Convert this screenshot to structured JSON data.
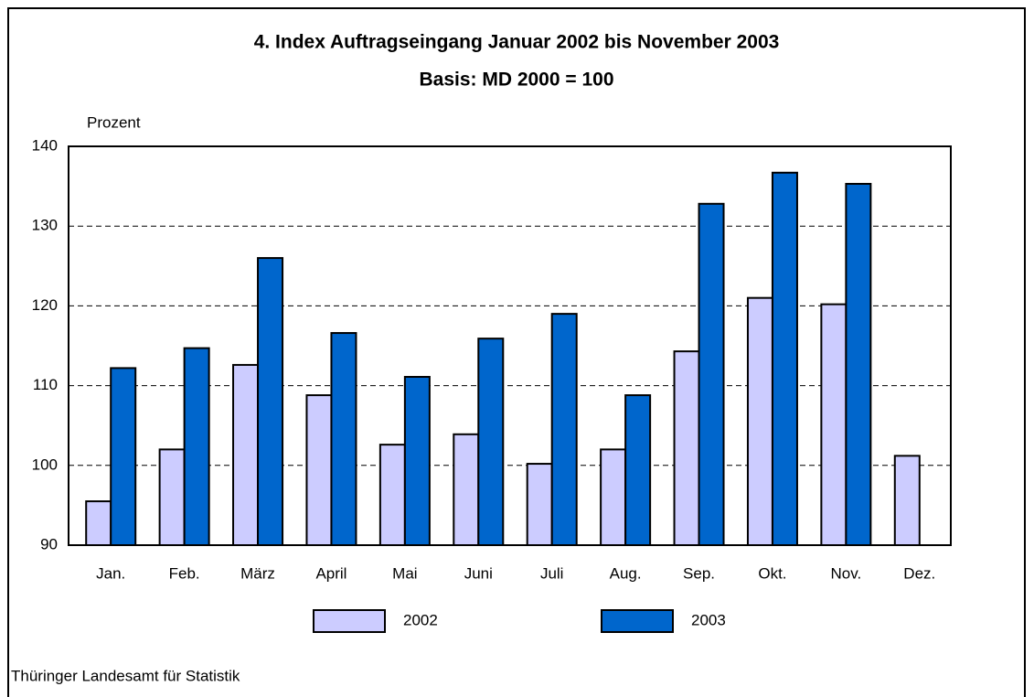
{
  "chart_data": {
    "type": "bar",
    "title": "4. Index Auftragseingang Januar 2002 bis November 2003",
    "subtitle": "Basis: MD 2000 = 100",
    "y_label": "Prozent",
    "source": "Thüringer Landesamt für Statistik",
    "categories": [
      "Jan.",
      "Feb.",
      "März",
      "April",
      "Mai",
      "Juni",
      "Juli",
      "Aug.",
      "Sep.",
      "Okt.",
      "Nov.",
      "Dez."
    ],
    "series": [
      {
        "name": "2002",
        "color": "#ccccff",
        "values": [
          95.5,
          102.0,
          112.6,
          108.8,
          102.6,
          103.9,
          100.2,
          102.0,
          114.3,
          121.0,
          120.2,
          101.2
        ]
      },
      {
        "name": "2003",
        "color": "#0066cc",
        "values": [
          112.2,
          114.7,
          126.0,
          116.6,
          111.1,
          115.9,
          119.0,
          108.8,
          132.8,
          136.7,
          135.3,
          null
        ]
      }
    ],
    "ylim": [
      90,
      140
    ],
    "yticks": [
      90,
      100,
      110,
      120,
      130,
      140
    ],
    "grid": true
  }
}
